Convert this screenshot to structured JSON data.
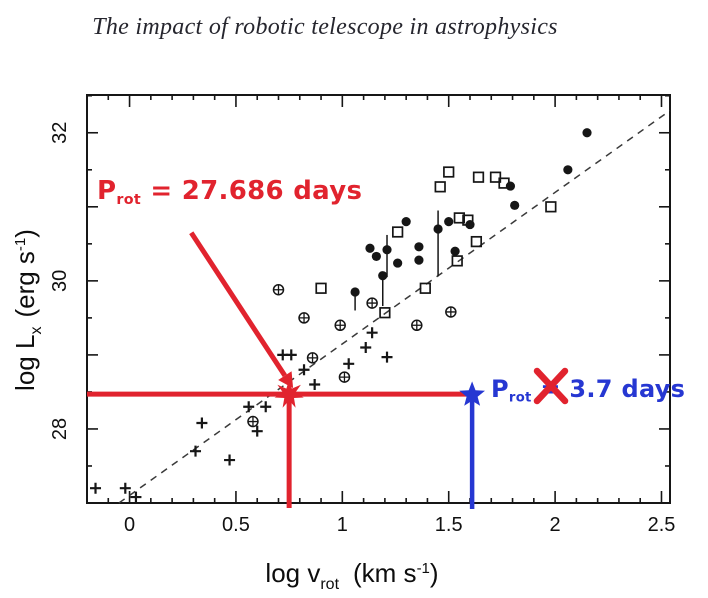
{
  "chart_data": {
    "type": "scatter",
    "title": "The impact of robotic telescope in astrophysics",
    "xlabel": {
      "main": "log v",
      "sub": "rot",
      "unit_open": "(km s",
      "unit_sup": "-1",
      "unit_close": ")"
    },
    "ylabel": {
      "main": "log L",
      "sub": "x",
      "unit_open": "(erg s",
      "unit_sup": "-1",
      "unit_close": ")"
    },
    "xlim": [
      -0.2,
      2.54
    ],
    "ylim": [
      27.0,
      32.51
    ],
    "grid": false,
    "legend": "none",
    "x_ticks": [
      {
        "v": 0,
        "label": "0"
      },
      {
        "v": 0.5,
        "label": "0.5"
      },
      {
        "v": 1,
        "label": "1"
      },
      {
        "v": 1.5,
        "label": "1.5"
      },
      {
        "v": 2,
        "label": "2"
      },
      {
        "v": 2.5,
        "label": "2.5"
      }
    ],
    "x_minor_step": 0.1,
    "y_ticks": [
      {
        "v": 28,
        "label": "28"
      },
      {
        "v": 30,
        "label": "30"
      },
      {
        "v": 32,
        "label": "32"
      }
    ],
    "y_minor_step": 0.5,
    "trend_line": {
      "style": "dashed",
      "x1": -0.05,
      "y1": 27.0,
      "x2": 2.54,
      "y2": 32.3
    },
    "series": [
      {
        "name": "filled-circle-points",
        "marker": "filled-circle",
        "points": [
          [
            2.15,
            32.0
          ],
          [
            2.06,
            31.5
          ],
          [
            1.79,
            31.28
          ],
          [
            1.81,
            31.02
          ],
          [
            1.3,
            30.8
          ],
          [
            1.13,
            30.44
          ],
          [
            1.16,
            30.33
          ],
          [
            1.21,
            30.42
          ],
          [
            1.26,
            30.24
          ],
          [
            1.36,
            30.46
          ],
          [
            1.36,
            30.28
          ],
          [
            1.45,
            30.7
          ],
          [
            1.5,
            30.8
          ],
          [
            1.6,
            30.76
          ],
          [
            1.53,
            30.4
          ],
          [
            1.19,
            30.07
          ],
          [
            1.06,
            29.85
          ]
        ]
      },
      {
        "name": "open-square-points",
        "marker": "open-square",
        "points": [
          [
            1.5,
            31.47
          ],
          [
            1.46,
            31.27
          ],
          [
            1.64,
            31.4
          ],
          [
            1.72,
            31.4
          ],
          [
            1.76,
            31.32
          ],
          [
            1.98,
            31.0
          ],
          [
            1.26,
            30.66
          ],
          [
            1.55,
            30.85
          ],
          [
            1.59,
            30.82
          ],
          [
            1.63,
            30.53
          ],
          [
            1.54,
            30.27
          ],
          [
            1.39,
            29.9
          ],
          [
            0.9,
            29.9
          ],
          [
            1.2,
            29.57
          ]
        ]
      },
      {
        "name": "circled-plus-points",
        "marker": "circled-plus",
        "points": [
          [
            0.7,
            29.88
          ],
          [
            1.14,
            29.7
          ],
          [
            0.82,
            29.5
          ],
          [
            0.99,
            29.4
          ],
          [
            0.86,
            28.96
          ],
          [
            1.01,
            28.7
          ],
          [
            0.58,
            28.1
          ],
          [
            1.51,
            29.58
          ],
          [
            1.35,
            29.4
          ]
        ]
      },
      {
        "name": "plus-points",
        "marker": "plus",
        "points": [
          [
            1.14,
            29.3
          ],
          [
            1.11,
            29.1
          ],
          [
            0.72,
            29.0
          ],
          [
            0.76,
            29.0
          ],
          [
            0.82,
            28.8
          ],
          [
            1.03,
            28.88
          ],
          [
            0.87,
            28.6
          ],
          [
            1.21,
            28.97
          ],
          [
            0.56,
            28.3
          ],
          [
            0.64,
            28.3
          ],
          [
            0.34,
            28.08
          ],
          [
            0.6,
            27.97
          ],
          [
            0.31,
            27.7
          ],
          [
            0.47,
            27.58
          ],
          [
            -0.16,
            27.2
          ],
          [
            -0.02,
            27.2
          ],
          [
            0.03,
            27.08
          ]
        ]
      }
    ],
    "error_bars": [
      {
        "x": 1.21,
        "lo": 30.05,
        "hi": 30.62
      },
      {
        "x": 1.45,
        "lo": 30.06,
        "hi": 30.95
      },
      {
        "x": 1.19,
        "lo": 29.66,
        "hi": 30.1
      },
      {
        "x": 1.06,
        "lo": 29.6,
        "hi": 29.86
      }
    ],
    "annotations": {
      "red": {
        "label_main": "P",
        "label_sub": "rot",
        "label_rest": " = 27.686 days",
        "color": "#e1232e",
        "star": [
          0.75,
          28.47
        ],
        "hline": {
          "y": 28.47,
          "x1": -0.2,
          "x2": 1.61
        },
        "vline": {
          "x": 0.75,
          "y1": 28.47,
          "y2": 27.0
        },
        "arrow": {
          "x1": 0.29,
          "y1": 30.65,
          "x2": 0.73,
          "y2": 28.72
        }
      },
      "blue": {
        "label_main": "P",
        "label_sub": "rot",
        "label_rest": " = 3.7 days",
        "color": "#2637d2",
        "star": [
          1.61,
          28.46
        ],
        "vline": {
          "x": 1.61,
          "y1": 28.46,
          "y2": 27.0
        },
        "crossed_out": true
      }
    }
  }
}
